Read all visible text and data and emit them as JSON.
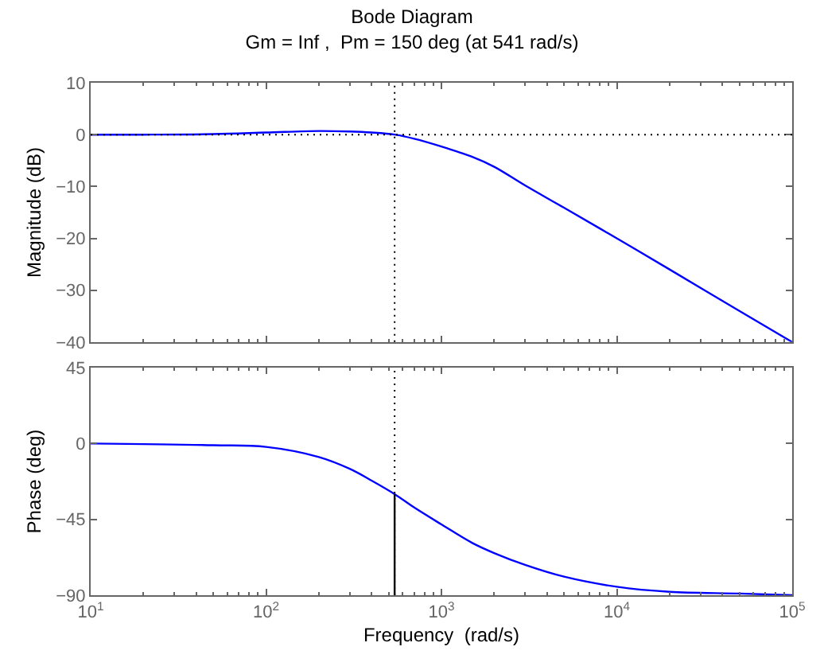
{
  "chart_data": [
    {
      "type": "line",
      "title": "Bode Diagram",
      "subtitle": "Gm = Inf ,  Pm = 150 deg (at 541 rad/s)",
      "ylabel": "Magnitude (dB)",
      "x": [
        10,
        20,
        50,
        100,
        200,
        300,
        400,
        541,
        700,
        1000,
        1500,
        2000,
        3000,
        5000,
        10000,
        20000,
        50000,
        100000
      ],
      "series": [
        {
          "color": "#0000ff",
          "values": [
            0,
            0,
            0.1,
            0.4,
            0.7,
            0.6,
            0.4,
            0,
            -0.8,
            -2.3,
            -4.3,
            -6.2,
            -9.8,
            -14.1,
            -20,
            -26,
            -34,
            -40
          ]
        }
      ],
      "log": "x",
      "xlim": [
        10,
        100000
      ],
      "xticks": [
        {
          "value": 10,
          "label": null
        },
        {
          "value": 100,
          "label": null
        },
        {
          "value": 1000,
          "label": null
        },
        {
          "value": 10000,
          "label": null
        },
        {
          "value": 100000,
          "label": null
        }
      ],
      "ylim": [
        -40,
        10
      ],
      "yticks": [
        -40,
        -30,
        -20,
        -10,
        0,
        10
      ],
      "tick_labels": "y",
      "marker": "none",
      "line_style": "solid",
      "ref_lines": [
        {
          "axis": "y",
          "value": 0,
          "color": "#000000",
          "line_style": "dotted"
        },
        {
          "axis": "x",
          "value": 541,
          "color": "#000000",
          "line_style": "dotted"
        }
      ]
    },
    {
      "type": "line",
      "xlabel": "Frequency  (rad/s)",
      "ylabel": "Phase (deg)",
      "x": [
        10,
        50,
        100,
        200,
        300,
        400,
        541,
        700,
        1000,
        1500,
        2000,
        3000,
        5000,
        10000,
        20000,
        50000,
        100000
      ],
      "series": [
        {
          "color": "#0000ff",
          "values": [
            0,
            -1,
            -2,
            -8,
            -15,
            -22,
            -30,
            -38,
            -48,
            -59,
            -65,
            -72,
            -79,
            -85,
            -88,
            -89,
            -90
          ]
        },
        {
          "color": "#000000",
          "x": [
            541,
            541
          ],
          "values": [
            -90,
            -30
          ]
        }
      ],
      "log": "x",
      "xlim": [
        10,
        100000
      ],
      "xticks": [
        {
          "value": 10,
          "label": "10$^{1}$"
        },
        {
          "value": 100,
          "label": "10$^{2}$"
        },
        {
          "value": 1000,
          "label": "10$^{3}$"
        },
        {
          "value": 10000,
          "label": "10$^{4}$"
        },
        {
          "value": 100000,
          "label": "10$^{5}$"
        }
      ],
      "ylim": [
        -90,
        45
      ],
      "yticks": [
        -90,
        -45,
        0,
        45
      ],
      "marker": "none",
      "line_style": "solid",
      "ref_lines": [
        {
          "axis": "x",
          "value": 541,
          "color": "#000000",
          "line_style": "dotted"
        }
      ]
    }
  ]
}
